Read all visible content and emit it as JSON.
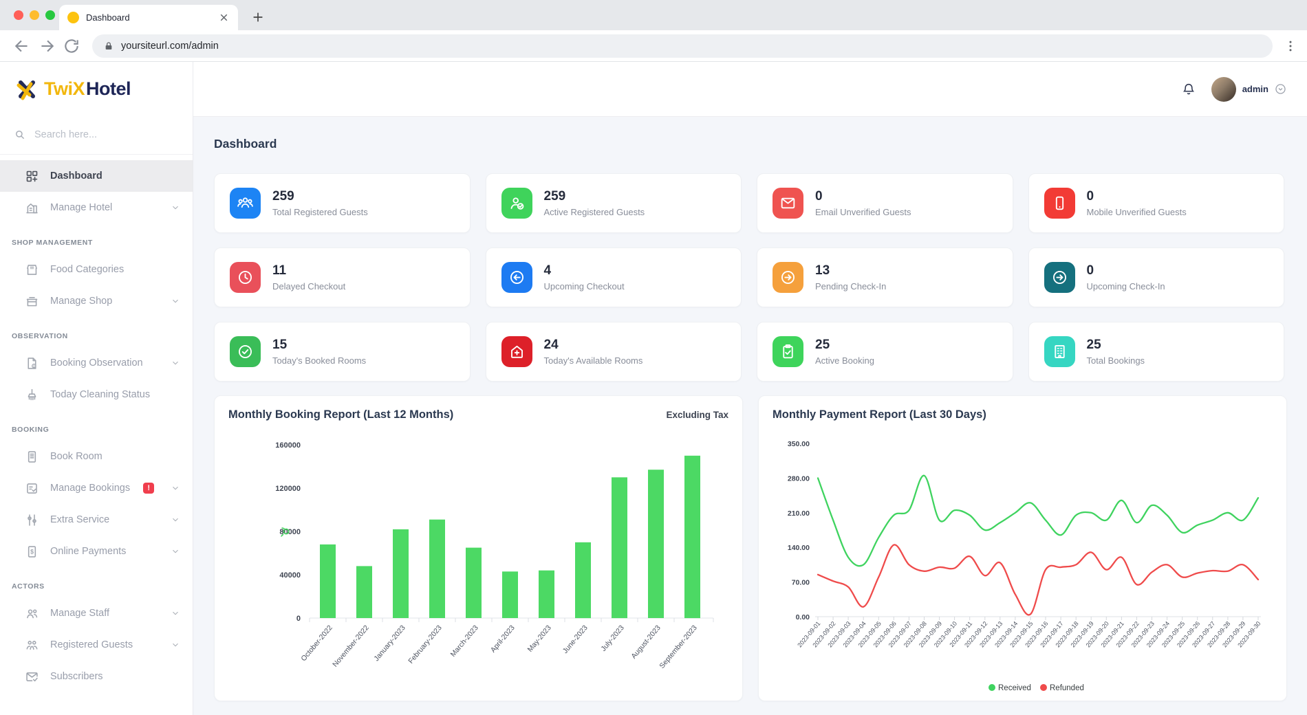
{
  "browser": {
    "tab_title": "Dashboard",
    "url": "yoursiteurl.com/admin"
  },
  "brand": {
    "prefix": "TwiX",
    "suffix": "Hotel",
    "yellow": "#f2b70d",
    "navy": "#1e2657"
  },
  "header": {
    "username": "admin"
  },
  "page": {
    "title": "Dashboard"
  },
  "sidebar": {
    "search_placeholder": "Search here...",
    "sections": [
      {
        "heading": null,
        "items": [
          {
            "label": "Dashboard",
            "icon": "grid-icon",
            "active": true
          },
          {
            "label": "Manage Hotel",
            "icon": "hotel-icon",
            "chevron": true
          }
        ]
      },
      {
        "heading": "SHOP MANAGEMENT",
        "items": [
          {
            "label": "Food Categories",
            "icon": "food-icon"
          },
          {
            "label": "Manage Shop",
            "icon": "shop-icon",
            "chevron": true
          }
        ]
      },
      {
        "heading": "OBSERVATION",
        "items": [
          {
            "label": "Booking Observation",
            "icon": "file-info-icon",
            "chevron": true
          },
          {
            "label": "Today Cleaning Status",
            "icon": "broom-icon"
          }
        ]
      },
      {
        "heading": "BOOKING",
        "items": [
          {
            "label": "Book Room",
            "icon": "book-room-icon"
          },
          {
            "label": "Manage Bookings",
            "icon": "list-check-icon",
            "badge": "!",
            "chevron": true
          },
          {
            "label": "Extra Service",
            "icon": "service-icon",
            "chevron": true
          },
          {
            "label": "Online Payments",
            "icon": "payment-icon",
            "chevron": true
          }
        ]
      },
      {
        "heading": "ACTORS",
        "items": [
          {
            "label": "Manage Staff",
            "icon": "staff-icon",
            "chevron": true
          },
          {
            "label": "Registered Guests",
            "icon": "guests-icon",
            "chevron": true
          },
          {
            "label": "Subscribers",
            "icon": "mail-check-icon"
          }
        ]
      }
    ]
  },
  "stat_cards": [
    {
      "value": "259",
      "label": "Total Registered Guests",
      "icon": "users-icon",
      "color": "#1d84f4"
    },
    {
      "value": "259",
      "label": "Active Registered Guests",
      "icon": "user-check-icon",
      "color": "#3fd35b"
    },
    {
      "value": "0",
      "label": "Email Unverified Guests",
      "icon": "envelope-icon",
      "color": "#ef5350"
    },
    {
      "value": "0",
      "label": "Mobile Unverified Guests",
      "icon": "phone-icon",
      "color": "#f23b35"
    },
    {
      "value": "11",
      "label": "Delayed Checkout",
      "icon": "clock-icon",
      "color": "#e9505a"
    },
    {
      "value": "4",
      "label": "Upcoming Checkout",
      "icon": "arrow-left-circle-icon",
      "color": "#1d7bf2"
    },
    {
      "value": "13",
      "label": "Pending Check-In",
      "icon": "arrow-right-circle-icon",
      "color": "#f5a03c"
    },
    {
      "value": "0",
      "label": "Upcoming Check-In",
      "icon": "arrow-right-circle-icon",
      "color": "#15707e"
    },
    {
      "value": "15",
      "label": "Today's Booked Rooms",
      "icon": "check-circle-icon",
      "color": "#3abd58"
    },
    {
      "value": "24",
      "label": "Today's Available Rooms",
      "icon": "house-plus-icon",
      "color": "#dd2029"
    },
    {
      "value": "25",
      "label": "Active Booking",
      "icon": "clipboard-check-icon",
      "color": "#3ed45b"
    },
    {
      "value": "25",
      "label": "Total Bookings",
      "icon": "building-icon",
      "color": "#36d6c2"
    }
  ],
  "chart_data": [
    {
      "type": "bar",
      "title": "Monthly Booking Report (Last 12 Months)",
      "note": "Excluding Tax",
      "categories": [
        "October-2022",
        "November-2022",
        "January-2023",
        "February-2023",
        "March-2023",
        "April-2023",
        "May-2023",
        "June-2023",
        "July-2023",
        "August-2023",
        "September-2023"
      ],
      "values": [
        68000,
        48000,
        82000,
        91000,
        65000,
        43000,
        44000,
        70000,
        130000,
        137000,
        150000
      ],
      "ylim": [
        0,
        160000
      ],
      "yticks": [
        0,
        40000,
        80000,
        120000,
        160000
      ],
      "bar_color": "#4cd964",
      "axis_icon": "currency-icon",
      "axis_icon_color": "#3fd35b",
      "grid": false,
      "legend_position": "none"
    },
    {
      "type": "line",
      "title": "Monthly Payment Report (Last 30 Days)",
      "x": [
        "2023-09-01",
        "2023-09-02",
        "2023-09-03",
        "2023-09-04",
        "2023-09-05",
        "2023-09-06",
        "2023-09-07",
        "2023-09-08",
        "2023-09-09",
        "2023-09-10",
        "2023-09-11",
        "2023-09-12",
        "2023-09-13",
        "2023-09-14",
        "2023-09-15",
        "2023-09-16",
        "2023-09-17",
        "2023-09-18",
        "2023-09-19",
        "2023-09-20",
        "2023-09-21",
        "2023-09-22",
        "2023-09-23",
        "2023-09-24",
        "2023-09-25",
        "2023-09-26",
        "2023-09-27",
        "2023-09-28",
        "2023-09-29",
        "2023-09-30"
      ],
      "series": [
        {
          "name": "Received",
          "color": "#3fd35f",
          "values": [
            280,
            195,
            120,
            105,
            160,
            205,
            215,
            285,
            195,
            215,
            205,
            175,
            190,
            210,
            230,
            195,
            165,
            205,
            210,
            195,
            235,
            190,
            225,
            205,
            170,
            185,
            195,
            210,
            195,
            240
          ]
        },
        {
          "name": "Refunded",
          "color": "#ef4b4b",
          "values": [
            85,
            72,
            60,
            20,
            80,
            145,
            105,
            92,
            100,
            98,
            122,
            83,
            109,
            45,
            5,
            95,
            100,
            105,
            130,
            95,
            120,
            65,
            90,
            105,
            80,
            88,
            93,
            92,
            105,
            75
          ]
        }
      ],
      "ylim": [
        0,
        350
      ],
      "yticks": [
        0,
        70,
        140,
        210,
        280,
        350
      ],
      "grid": false,
      "legend_position": "bottom"
    }
  ]
}
